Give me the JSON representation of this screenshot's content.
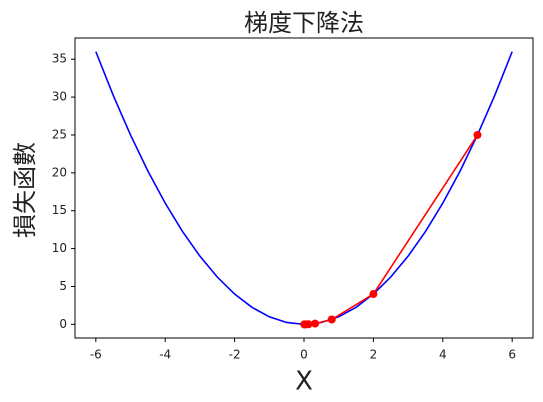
{
  "chart_data": {
    "type": "line",
    "title": "梯度下降法",
    "x_label": "X",
    "y_label": "損失函數",
    "xlim": [
      -6.6,
      6.6
    ],
    "ylim": [
      -1.8,
      37.8
    ],
    "xticks": [
      -6,
      -4,
      -2,
      0,
      2,
      4,
      6
    ],
    "yticks": [
      0,
      5,
      10,
      15,
      20,
      25,
      30,
      35
    ],
    "series": [
      {
        "color": "#0000ff",
        "marker": false,
        "x": [
          -6,
          -5.5,
          -5,
          -4.5,
          -4,
          -3.5,
          -3,
          -2.5,
          -2,
          -1.5,
          -1,
          -0.5,
          0,
          0.5,
          1,
          1.5,
          2,
          2.5,
          3,
          3.5,
          4,
          4.5,
          5,
          5.5,
          6
        ],
        "values": [
          36,
          30.25,
          25,
          20.25,
          16,
          12.25,
          9,
          6.25,
          4,
          2.25,
          1,
          0.25,
          0,
          0.25,
          1,
          2.25,
          4,
          6.25,
          9,
          12.25,
          16,
          20.25,
          25,
          30.25,
          36
        ]
      },
      {
        "color": "#ff0000",
        "marker": true,
        "x": [
          5,
          2,
          0.8,
          0.32,
          0.128,
          0.0512,
          0.02,
          0.008
        ],
        "values": [
          25,
          4,
          0.64,
          0.1,
          0.016,
          0.003,
          0.0004,
          0.0001
        ]
      }
    ]
  }
}
